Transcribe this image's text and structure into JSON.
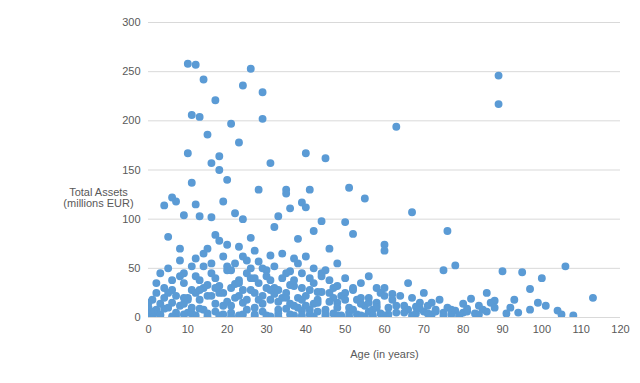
{
  "chart_data": {
    "type": "scatter",
    "x_label": "Age (in years)",
    "y_label": "Total Assets\n(millions EUR)",
    "x": [
      10,
      12,
      14,
      26,
      24,
      29,
      17,
      89,
      89,
      11,
      13,
      21,
      29,
      63,
      23,
      15,
      18,
      10,
      40,
      45,
      31,
      16,
      18,
      11,
      20,
      35,
      35,
      28,
      41,
      51,
      55,
      6,
      7,
      12,
      19,
      4,
      9,
      13,
      16,
      22,
      24,
      36,
      39,
      40,
      44,
      50,
      67,
      76,
      5,
      17,
      26,
      32,
      33,
      38,
      42,
      52,
      60,
      60,
      75,
      78,
      90,
      95,
      97,
      99,
      106,
      113,
      104,
      105,
      88,
      92,
      82,
      85,
      80,
      70,
      72,
      66,
      68,
      58,
      62,
      56,
      48,
      46,
      37,
      31,
      27,
      23,
      20,
      14,
      8,
      3,
      2,
      1,
      0,
      0,
      1,
      2,
      3,
      4,
      5,
      6,
      7,
      8,
      9,
      10,
      11,
      12,
      13,
      14,
      15,
      16,
      17,
      18,
      19,
      20,
      21,
      22,
      23,
      24,
      25,
      26,
      27,
      28,
      29,
      30,
      31,
      32,
      33,
      34,
      35,
      36,
      37,
      38,
      39,
      40,
      41,
      42,
      43,
      44,
      45,
      46,
      47,
      48,
      49,
      50,
      51,
      52,
      53,
      54,
      55,
      56,
      57,
      58,
      59,
      60,
      61,
      62,
      63,
      64,
      65,
      66,
      67,
      68,
      69,
      70,
      71,
      72,
      73,
      74,
      75,
      76,
      77,
      78,
      79,
      80,
      81,
      83,
      84,
      86,
      87,
      93,
      2,
      4,
      6,
      8,
      10,
      12,
      14,
      16,
      18,
      20,
      22,
      24,
      26,
      28,
      30,
      32,
      34,
      36,
      38,
      40,
      42,
      44,
      46,
      48,
      50,
      52,
      54,
      56,
      58,
      60,
      1,
      3,
      5,
      7,
      9,
      11,
      13,
      15,
      17,
      19,
      21,
      23,
      25,
      27,
      29,
      31,
      33,
      35,
      37,
      39,
      41,
      43,
      45,
      47,
      49,
      51,
      53,
      55,
      57,
      59,
      0,
      2,
      4,
      6,
      8,
      10,
      12,
      14,
      16,
      18,
      20,
      22,
      24,
      26,
      28,
      30,
      32,
      34,
      36,
      38,
      40,
      42,
      44,
      46,
      48,
      50,
      52,
      54,
      56,
      58,
      61,
      63,
      65,
      67,
      69,
      71,
      73,
      75,
      77,
      79,
      9,
      11,
      13,
      15,
      17,
      19,
      21,
      23,
      25,
      27,
      29,
      31,
      33,
      35,
      37,
      39,
      41,
      43,
      45,
      47,
      5,
      7,
      9,
      11,
      13,
      15,
      17,
      19,
      21,
      23,
      25,
      27,
      29,
      31,
      33,
      35,
      37,
      39,
      41,
      43,
      3,
      6,
      9,
      12,
      15,
      18,
      21,
      24,
      27,
      30,
      33,
      36,
      39,
      42,
      45,
      48,
      51,
      54,
      57,
      60,
      101,
      94,
      91,
      84,
      97,
      108,
      100,
      86,
      81,
      88
    ],
    "values": [
      258,
      257,
      242,
      253,
      236,
      229,
      221,
      246,
      217,
      206,
      204,
      197,
      202,
      194,
      178,
      186,
      164,
      167,
      167,
      162,
      157,
      157,
      150,
      137,
      140,
      130,
      126,
      130,
      130,
      132,
      121,
      122,
      118,
      115,
      118,
      114,
      104,
      103,
      102,
      106,
      100,
      111,
      117,
      112,
      98,
      97,
      107,
      88,
      82,
      84,
      81,
      92,
      103,
      80,
      88,
      85,
      74,
      68,
      48,
      53,
      47,
      46,
      29,
      15,
      52,
      20,
      7,
      3,
      17,
      10,
      19,
      8,
      14,
      25,
      15,
      35,
      11,
      30,
      24,
      42,
      55,
      70,
      60,
      63,
      68,
      72,
      74,
      65,
      70,
      45,
      25,
      18,
      10,
      4,
      2,
      8,
      14,
      30,
      50,
      38,
      22,
      12,
      35,
      5,
      28,
      42,
      18,
      8,
      33,
      55,
      40,
      25,
      12,
      48,
      30,
      20,
      38,
      15,
      45,
      28,
      10,
      35,
      22,
      42,
      18,
      30,
      8,
      40,
      25,
      14,
      32,
      20,
      45,
      12,
      28,
      35,
      18,
      42,
      8,
      25,
      30,
      15,
      22,
      40,
      10,
      28,
      18,
      35,
      12,
      20,
      8,
      15,
      25,
      30,
      10,
      18,
      5,
      22,
      12,
      8,
      20,
      4,
      15,
      6,
      12,
      3,
      8,
      18,
      5,
      10,
      3,
      7,
      2,
      5,
      9,
      4,
      12,
      6,
      15,
      18,
      5,
      20,
      15,
      58,
      18,
      60,
      30,
      45,
      78,
      52,
      55,
      62,
      50,
      57,
      48,
      52,
      65,
      47,
      55,
      62,
      50,
      45,
      38,
      32,
      25,
      30,
      20,
      15,
      12,
      22,
      6,
      3,
      10,
      2,
      14,
      4,
      9,
      1,
      6,
      3,
      5,
      2,
      8,
      3,
      6,
      1,
      4,
      9,
      2,
      7,
      3,
      6,
      1,
      4,
      2,
      5,
      3,
      1,
      2,
      4,
      15,
      35,
      9,
      28,
      42,
      20,
      25,
      52,
      22,
      32,
      16,
      34,
      28,
      40,
      18,
      30,
      24,
      20,
      33,
      10,
      22,
      14,
      26,
      16,
      10,
      18,
      8,
      14,
      6,
      10,
      3,
      12,
      5,
      2,
      9,
      4,
      6,
      2,
      8,
      1,
      45,
      52,
      38,
      70,
      30,
      62,
      48,
      35,
      58,
      40,
      50,
      38,
      28,
      45,
      38,
      30,
      40,
      26,
      48,
      20,
      25,
      5,
      20,
      10,
      28,
      22,
      14,
      25,
      12,
      22,
      18,
      25,
      14,
      28,
      16,
      20,
      12,
      18,
      8,
      15,
      2,
      1,
      3,
      2,
      4,
      2,
      1,
      3,
      1,
      2,
      1,
      3,
      2,
      1,
      3,
      2,
      1,
      2,
      1,
      2,
      12,
      5,
      4,
      3,
      8,
      2,
      40,
      25,
      6,
      10
    ],
    "color": "#5b9bd5",
    "marker": "circle",
    "xlim": [
      0,
      120
    ],
    "ylim": [
      0,
      300
    ],
    "xticks": [
      0,
      10,
      20,
      30,
      40,
      50,
      60,
      70,
      80,
      90,
      100,
      110,
      120
    ],
    "yticks": [
      0,
      50,
      100,
      150,
      200,
      250,
      300
    ],
    "grid": true
  }
}
